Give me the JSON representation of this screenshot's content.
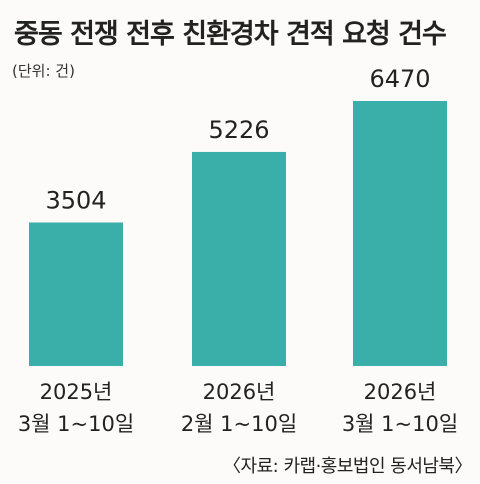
{
  "title": "중동 전쟁 전후 친환경차 견적 요청 건수",
  "unit_label": "(단위: 건)",
  "source": "〈자료: 카랩·홍보법인 동서남북〉",
  "colors": {
    "bar": "#3aafaa",
    "text": "#222222",
    "background": "#fcfbf9"
  },
  "chart_data": {
    "type": "bar",
    "title": "중동 전쟁 전후 친환경차 견적 요청 건수",
    "ylabel": "",
    "xlabel": "",
    "unit": "건",
    "categories": [
      [
        "2025년",
        "3월 1~10일"
      ],
      [
        "2026년",
        "2월 1~10일"
      ],
      [
        "2026년",
        "3월 1~10일"
      ]
    ],
    "values": [
      3504,
      5226,
      6470
    ],
    "data_labels": [
      "3504",
      "5226",
      "6470"
    ],
    "ylim": [
      0,
      6470
    ],
    "grid": false,
    "legend": "none"
  }
}
